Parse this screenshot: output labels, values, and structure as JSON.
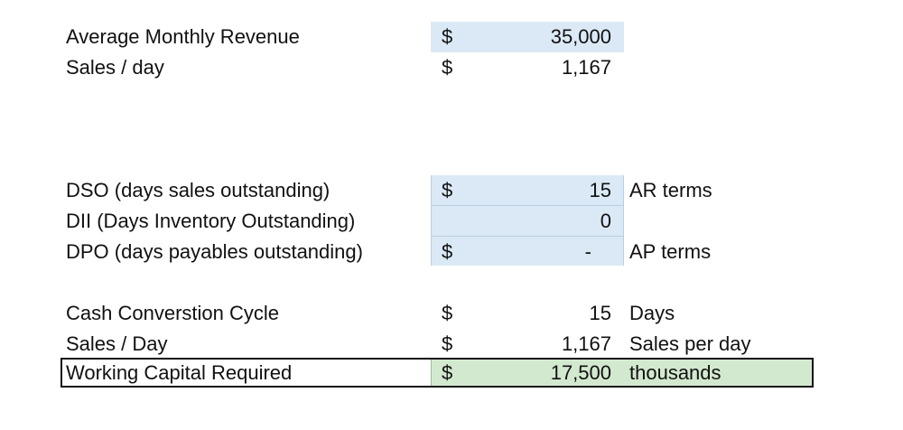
{
  "rows": [
    {
      "label": "Average Monthly Revenue",
      "currency": "$",
      "value": "35,000",
      "note": ""
    },
    {
      "label": "Sales / day",
      "currency": "$",
      "value": "1,167",
      "note": ""
    },
    {
      "label": "DSO (days sales outstanding)",
      "currency": "$",
      "value": "15",
      "note": "AR terms"
    },
    {
      "label": "DII (Days Inventory Outstanding)",
      "currency": "",
      "value": "0",
      "note": ""
    },
    {
      "label": "DPO (days payables outstanding)",
      "currency": "$",
      "value": "-",
      "note": "AP terms"
    },
    {
      "label": "Cash Converstion Cycle",
      "currency": "$",
      "value": "15",
      "note": "Days"
    },
    {
      "label": "Sales / Day",
      "currency": "$",
      "value": "1,167",
      "note": "Sales per day"
    },
    {
      "label": "Working Capital Required",
      "currency": "$",
      "value": "17,500",
      "note": "thousands"
    }
  ],
  "colors": {
    "input_fill": "#dbe9f6",
    "result_fill": "#d3e9cf"
  }
}
